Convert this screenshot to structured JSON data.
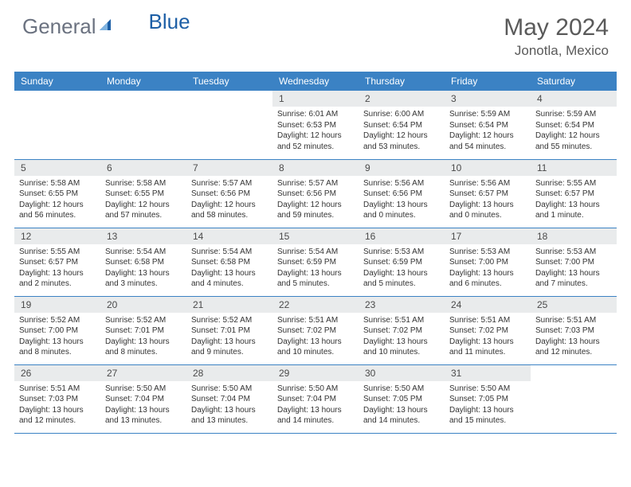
{
  "brand": {
    "name_part1": "General",
    "name_part2": "Blue"
  },
  "colors": {
    "header_bg": "#3b82c4",
    "header_text": "#ffffff",
    "daynum_bg": "#e9ebec",
    "text": "#333333",
    "title": "#5a5a5a",
    "rule": "#3b82c4",
    "logo_gray": "#6b7280",
    "logo_blue": "#1d5fa6"
  },
  "title": "May 2024",
  "location": "Jonotla, Mexico",
  "day_headers": [
    "Sunday",
    "Monday",
    "Tuesday",
    "Wednesday",
    "Thursday",
    "Friday",
    "Saturday"
  ],
  "weeks": [
    [
      {
        "n": "",
        "lines": []
      },
      {
        "n": "",
        "lines": []
      },
      {
        "n": "",
        "lines": []
      },
      {
        "n": "1",
        "lines": [
          "Sunrise: 6:01 AM",
          "Sunset: 6:53 PM",
          "Daylight: 12 hours",
          "and 52 minutes."
        ]
      },
      {
        "n": "2",
        "lines": [
          "Sunrise: 6:00 AM",
          "Sunset: 6:54 PM",
          "Daylight: 12 hours",
          "and 53 minutes."
        ]
      },
      {
        "n": "3",
        "lines": [
          "Sunrise: 5:59 AM",
          "Sunset: 6:54 PM",
          "Daylight: 12 hours",
          "and 54 minutes."
        ]
      },
      {
        "n": "4",
        "lines": [
          "Sunrise: 5:59 AM",
          "Sunset: 6:54 PM",
          "Daylight: 12 hours",
          "and 55 minutes."
        ]
      }
    ],
    [
      {
        "n": "5",
        "lines": [
          "Sunrise: 5:58 AM",
          "Sunset: 6:55 PM",
          "Daylight: 12 hours",
          "and 56 minutes."
        ]
      },
      {
        "n": "6",
        "lines": [
          "Sunrise: 5:58 AM",
          "Sunset: 6:55 PM",
          "Daylight: 12 hours",
          "and 57 minutes."
        ]
      },
      {
        "n": "7",
        "lines": [
          "Sunrise: 5:57 AM",
          "Sunset: 6:56 PM",
          "Daylight: 12 hours",
          "and 58 minutes."
        ]
      },
      {
        "n": "8",
        "lines": [
          "Sunrise: 5:57 AM",
          "Sunset: 6:56 PM",
          "Daylight: 12 hours",
          "and 59 minutes."
        ]
      },
      {
        "n": "9",
        "lines": [
          "Sunrise: 5:56 AM",
          "Sunset: 6:56 PM",
          "Daylight: 13 hours",
          "and 0 minutes."
        ]
      },
      {
        "n": "10",
        "lines": [
          "Sunrise: 5:56 AM",
          "Sunset: 6:57 PM",
          "Daylight: 13 hours",
          "and 0 minutes."
        ]
      },
      {
        "n": "11",
        "lines": [
          "Sunrise: 5:55 AM",
          "Sunset: 6:57 PM",
          "Daylight: 13 hours",
          "and 1 minute."
        ]
      }
    ],
    [
      {
        "n": "12",
        "lines": [
          "Sunrise: 5:55 AM",
          "Sunset: 6:57 PM",
          "Daylight: 13 hours",
          "and 2 minutes."
        ]
      },
      {
        "n": "13",
        "lines": [
          "Sunrise: 5:54 AM",
          "Sunset: 6:58 PM",
          "Daylight: 13 hours",
          "and 3 minutes."
        ]
      },
      {
        "n": "14",
        "lines": [
          "Sunrise: 5:54 AM",
          "Sunset: 6:58 PM",
          "Daylight: 13 hours",
          "and 4 minutes."
        ]
      },
      {
        "n": "15",
        "lines": [
          "Sunrise: 5:54 AM",
          "Sunset: 6:59 PM",
          "Daylight: 13 hours",
          "and 5 minutes."
        ]
      },
      {
        "n": "16",
        "lines": [
          "Sunrise: 5:53 AM",
          "Sunset: 6:59 PM",
          "Daylight: 13 hours",
          "and 5 minutes."
        ]
      },
      {
        "n": "17",
        "lines": [
          "Sunrise: 5:53 AM",
          "Sunset: 7:00 PM",
          "Daylight: 13 hours",
          "and 6 minutes."
        ]
      },
      {
        "n": "18",
        "lines": [
          "Sunrise: 5:53 AM",
          "Sunset: 7:00 PM",
          "Daylight: 13 hours",
          "and 7 minutes."
        ]
      }
    ],
    [
      {
        "n": "19",
        "lines": [
          "Sunrise: 5:52 AM",
          "Sunset: 7:00 PM",
          "Daylight: 13 hours",
          "and 8 minutes."
        ]
      },
      {
        "n": "20",
        "lines": [
          "Sunrise: 5:52 AM",
          "Sunset: 7:01 PM",
          "Daylight: 13 hours",
          "and 8 minutes."
        ]
      },
      {
        "n": "21",
        "lines": [
          "Sunrise: 5:52 AM",
          "Sunset: 7:01 PM",
          "Daylight: 13 hours",
          "and 9 minutes."
        ]
      },
      {
        "n": "22",
        "lines": [
          "Sunrise: 5:51 AM",
          "Sunset: 7:02 PM",
          "Daylight: 13 hours",
          "and 10 minutes."
        ]
      },
      {
        "n": "23",
        "lines": [
          "Sunrise: 5:51 AM",
          "Sunset: 7:02 PM",
          "Daylight: 13 hours",
          "and 10 minutes."
        ]
      },
      {
        "n": "24",
        "lines": [
          "Sunrise: 5:51 AM",
          "Sunset: 7:02 PM",
          "Daylight: 13 hours",
          "and 11 minutes."
        ]
      },
      {
        "n": "25",
        "lines": [
          "Sunrise: 5:51 AM",
          "Sunset: 7:03 PM",
          "Daylight: 13 hours",
          "and 12 minutes."
        ]
      }
    ],
    [
      {
        "n": "26",
        "lines": [
          "Sunrise: 5:51 AM",
          "Sunset: 7:03 PM",
          "Daylight: 13 hours",
          "and 12 minutes."
        ]
      },
      {
        "n": "27",
        "lines": [
          "Sunrise: 5:50 AM",
          "Sunset: 7:04 PM",
          "Daylight: 13 hours",
          "and 13 minutes."
        ]
      },
      {
        "n": "28",
        "lines": [
          "Sunrise: 5:50 AM",
          "Sunset: 7:04 PM",
          "Daylight: 13 hours",
          "and 13 minutes."
        ]
      },
      {
        "n": "29",
        "lines": [
          "Sunrise: 5:50 AM",
          "Sunset: 7:04 PM",
          "Daylight: 13 hours",
          "and 14 minutes."
        ]
      },
      {
        "n": "30",
        "lines": [
          "Sunrise: 5:50 AM",
          "Sunset: 7:05 PM",
          "Daylight: 13 hours",
          "and 14 minutes."
        ]
      },
      {
        "n": "31",
        "lines": [
          "Sunrise: 5:50 AM",
          "Sunset: 7:05 PM",
          "Daylight: 13 hours",
          "and 15 minutes."
        ]
      },
      {
        "n": "",
        "lines": []
      }
    ]
  ]
}
